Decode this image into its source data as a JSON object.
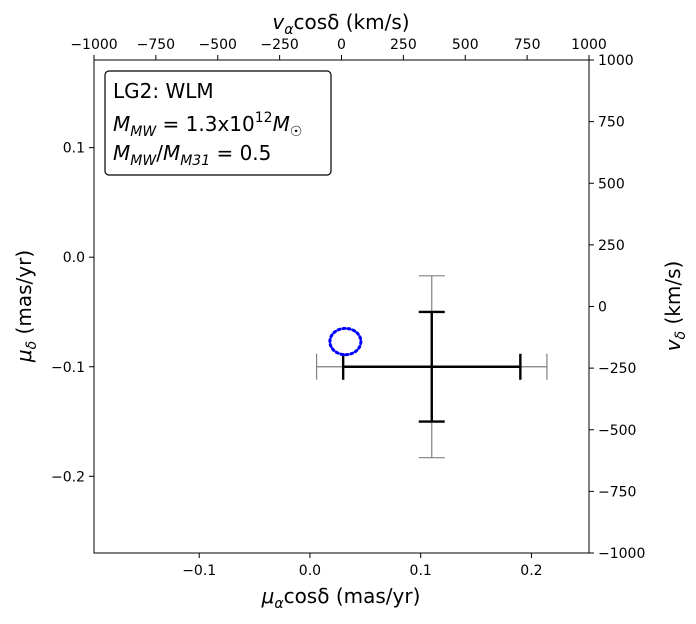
{
  "chart_data": {
    "type": "scatter",
    "annotation": {
      "line1": "LG2: WLM",
      "line2_base": "M",
      "line2_sub": "MW",
      "line2_mid": " = 1.3x10",
      "line2_sup": "12",
      "line2_end": "M",
      "line2_end_sub": "☉",
      "line3_base_a": "M",
      "line3_sub_a": "MW",
      "line3_slash": "/",
      "line3_base_b": "M",
      "line3_sub_b": "M31",
      "line3_end": " = 0.5"
    },
    "xlabel_bottom": {
      "prefix": "μ",
      "sub": "α",
      "rest": "cosδ (mas/yr)"
    },
    "ylabel_left": {
      "prefix": "μ",
      "sub": "δ",
      "rest": " (mas/yr)"
    },
    "xlabel_top": {
      "prefix": "v",
      "sub": "α",
      "rest": "cosδ (km/s)"
    },
    "ylabel_right": {
      "prefix": "v",
      "sub": "δ",
      "rest": " (km/s)"
    },
    "xlim": [
      -0.195,
      0.252
    ],
    "ylim": [
      -0.27,
      0.18
    ],
    "top_xlim": [
      -1000,
      1000
    ],
    "right_ylim": [
      -1000,
      1000
    ],
    "xticks": [
      -0.1,
      0.0,
      0.1,
      0.2
    ],
    "xtick_labels": [
      "−0.1",
      "0.0",
      "0.1",
      "0.2"
    ],
    "yticks": [
      0.1,
      0.0,
      -0.1,
      -0.2
    ],
    "ytick_labels": [
      "0.1",
      "0.0",
      "−0.1",
      "−0.2"
    ],
    "top_xticks": [
      -1000,
      -750,
      -500,
      -250,
      0,
      250,
      500,
      750,
      1000
    ],
    "top_xtick_labels": [
      "−1000",
      "−750",
      "−500",
      "−250",
      "0",
      "250",
      "500",
      "750",
      "1000"
    ],
    "right_yticks": [
      1000,
      750,
      500,
      250,
      0,
      -250,
      -500,
      -750,
      -1000
    ],
    "right_ytick_labels": [
      "1000",
      "750",
      "500",
      "250",
      "0",
      "−250",
      "−500",
      "−750",
      "−1000"
    ],
    "measurement": {
      "x": 0.11,
      "y": -0.1,
      "x_err_stat": 0.08,
      "y_err_stat": 0.05,
      "x_err_total": 0.104,
      "y_err_total": 0.083,
      "stat_color": "#000000",
      "total_color": "#808080"
    },
    "prediction_contour": {
      "center_x": 0.032,
      "center_y": -0.077,
      "radius_x": 0.014,
      "radius_y": 0.012,
      "color": "#0000ff",
      "style": "dotted"
    },
    "grid": false,
    "legend": "none"
  }
}
